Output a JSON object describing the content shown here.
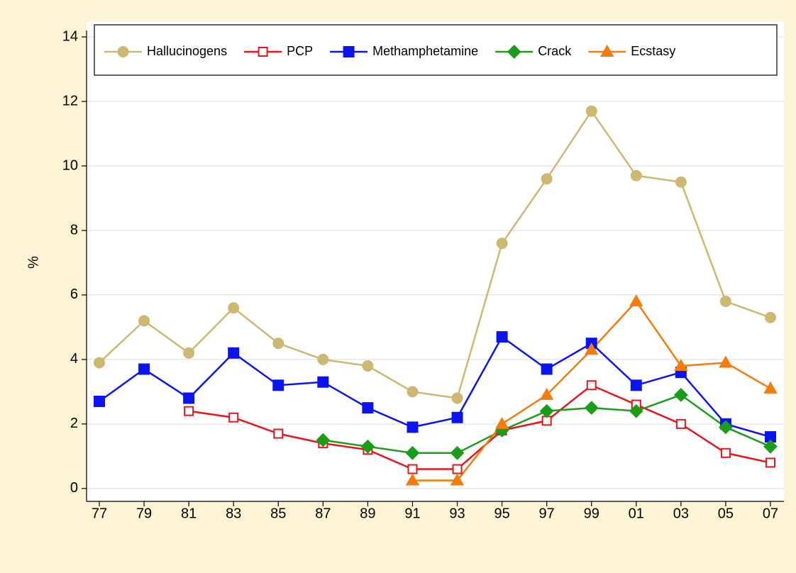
{
  "chart_data": {
    "type": "line",
    "y_label": "%",
    "categories": [
      "77",
      "79",
      "81",
      "83",
      "85",
      "87",
      "89",
      "91",
      "93",
      "95",
      "97",
      "99",
      "01",
      "03",
      "05",
      "07"
    ],
    "ylim": [
      -0.4,
      14.2
    ],
    "yticks": [
      0,
      2,
      4,
      6,
      8,
      10,
      12,
      14
    ],
    "grid": true,
    "legend": "top",
    "series": [
      {
        "name": "Hallucinogens",
        "color": "#cdb872",
        "marker": "circle",
        "values": [
          3.9,
          5.2,
          4.2,
          5.6,
          4.5,
          4.0,
          3.8,
          3.0,
          2.8,
          7.6,
          9.6,
          11.7,
          9.7,
          9.5,
          5.8,
          5.3
        ]
      },
      {
        "name": "PCP",
        "color": "#e8141c",
        "marker": "square-open",
        "values": [
          null,
          null,
          2.4,
          2.2,
          1.7,
          1.4,
          1.2,
          0.6,
          0.6,
          1.8,
          2.1,
          3.2,
          2.6,
          2.0,
          1.1,
          0.8
        ]
      },
      {
        "name": "Methamphetamine",
        "color": "#0a14f0",
        "marker": "square",
        "values": [
          2.7,
          3.7,
          2.8,
          4.2,
          3.2,
          3.3,
          2.5,
          1.9,
          2.2,
          4.7,
          3.7,
          4.5,
          3.2,
          3.6,
          2.0,
          1.6
        ]
      },
      {
        "name": "Crack",
        "color": "#1a9e1a",
        "marker": "diamond",
        "values": [
          null,
          null,
          null,
          null,
          null,
          1.5,
          1.3,
          1.1,
          1.1,
          1.8,
          2.4,
          2.5,
          2.4,
          2.9,
          1.9,
          1.3
        ]
      },
      {
        "name": "Ecstasy",
        "color": "#f47c0c",
        "marker": "triangle",
        "values": [
          null,
          null,
          null,
          null,
          null,
          null,
          null,
          0.25,
          0.25,
          2.0,
          2.9,
          4.3,
          5.8,
          3.8,
          3.9,
          3.1
        ]
      }
    ]
  }
}
